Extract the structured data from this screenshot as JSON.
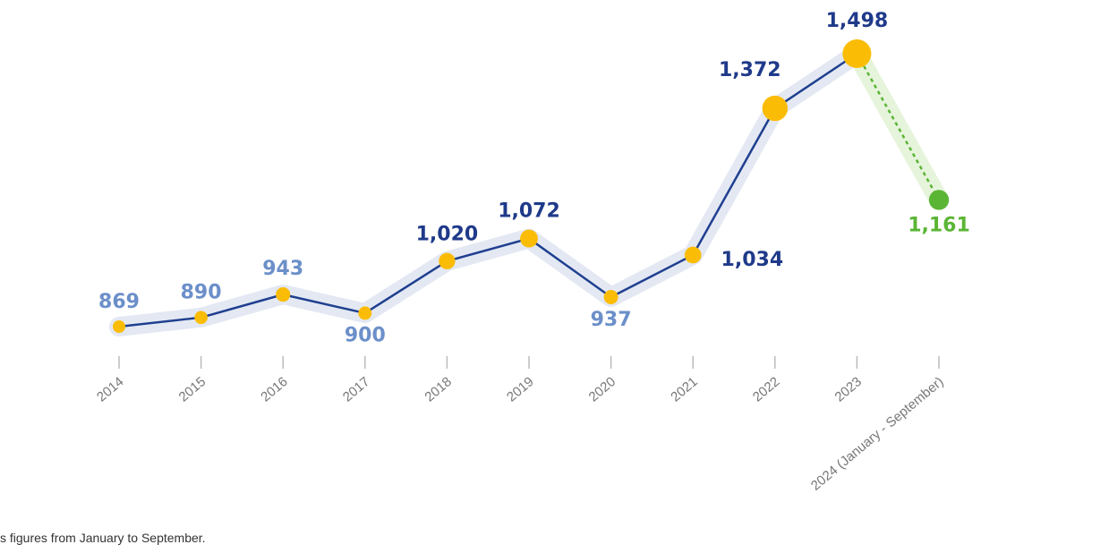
{
  "chart_data": {
    "type": "line",
    "categories": [
      "2014",
      "2015",
      "2016",
      "2017",
      "2018",
      "2019",
      "2020",
      "2021",
      "2022",
      "2023",
      "2024 (January - September)"
    ],
    "values": [
      869,
      890,
      943,
      900,
      1020,
      1072,
      937,
      1034,
      1372,
      1498,
      1161
    ],
    "value_labels": [
      "869",
      "890",
      "943",
      "900",
      "1,020",
      "1,072",
      "937",
      "1,034",
      "1,372",
      "1,498",
      "1,161"
    ],
    "line_color": "#1f3f8f",
    "marker_color": "#fbbc05",
    "partial_color": "#5ab534",
    "footnote": "s figures from January to September."
  }
}
